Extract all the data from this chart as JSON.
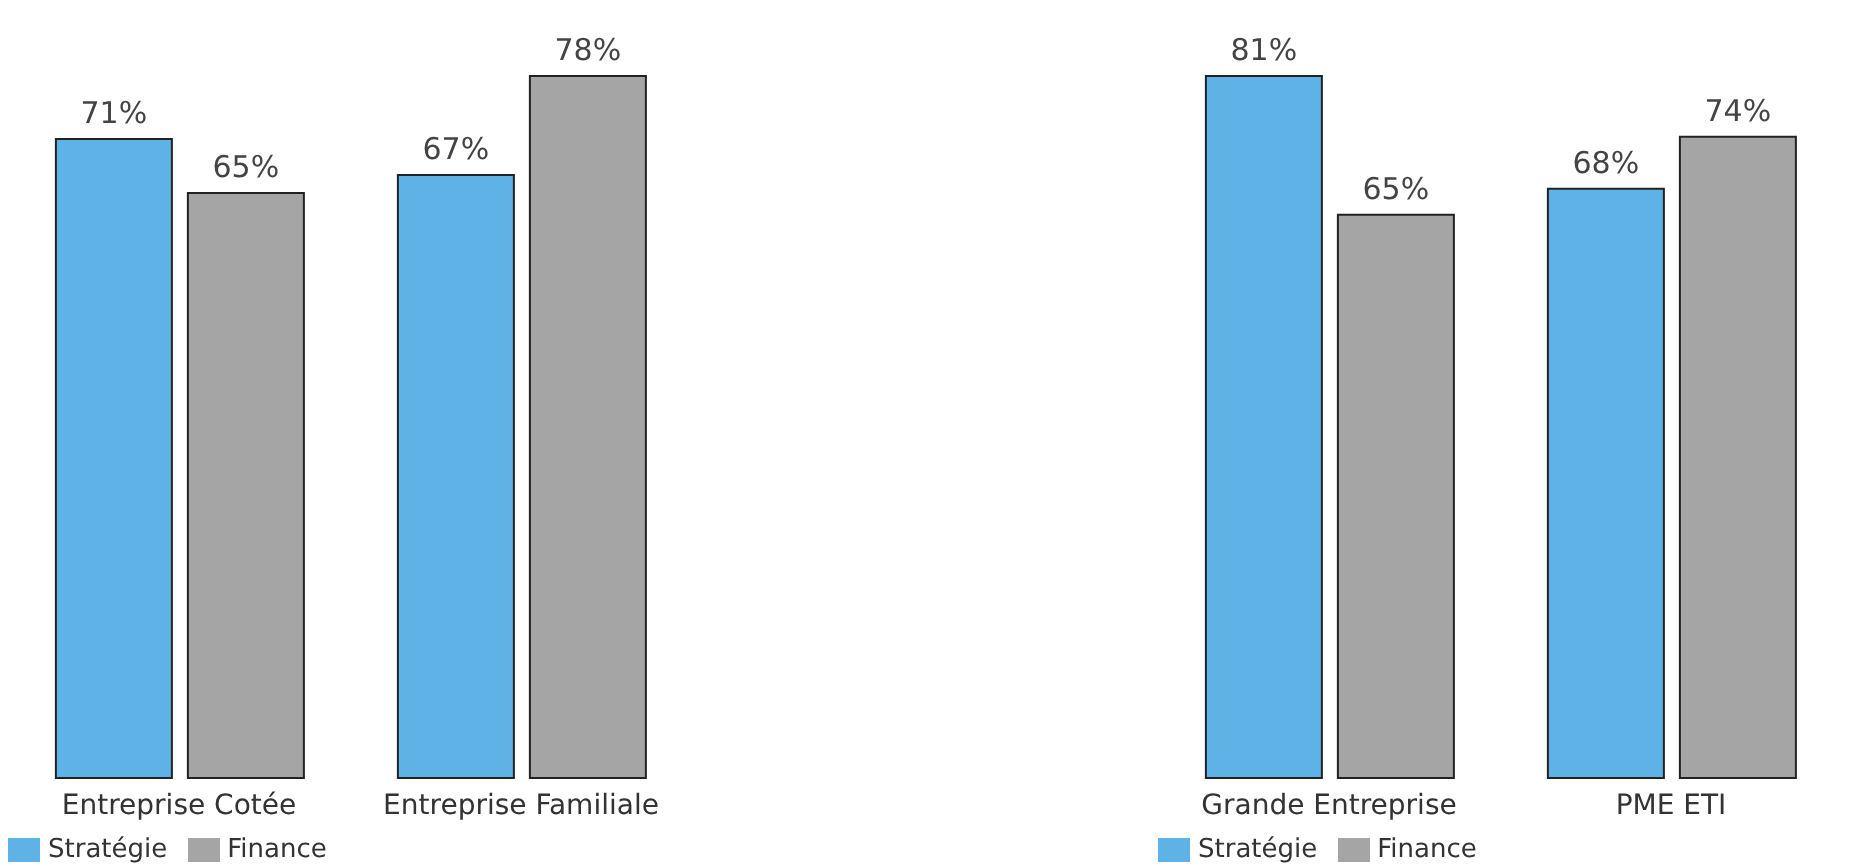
{
  "chart_data": [
    {
      "type": "bar",
      "categories": [
        "Entreprise Cotée",
        "Entreprise Familiale"
      ],
      "series": [
        {
          "name": "Stratégie",
          "color": "#5fb2e5",
          "values": [
            71,
            67
          ],
          "value_labels": [
            "71%",
            "67%"
          ]
        },
        {
          "name": "Finance",
          "color": "#a5a5a5",
          "values": [
            65,
            78
          ],
          "value_labels": [
            "65%",
            "78%"
          ]
        }
      ],
      "legend": "bottom left"
    },
    {
      "type": "bar",
      "categories": [
        "Grande Entreprise",
        "PME ETI"
      ],
      "series": [
        {
          "name": "Stratégie",
          "color": "#5fb2e5",
          "values": [
            81,
            68
          ],
          "value_labels": [
            "81%",
            "68%"
          ]
        },
        {
          "name": "Finance",
          "color": "#a5a5a5",
          "values": [
            65,
            74
          ],
          "value_labels": [
            "65%",
            "74%"
          ]
        }
      ],
      "legend": "bottom left"
    }
  ]
}
